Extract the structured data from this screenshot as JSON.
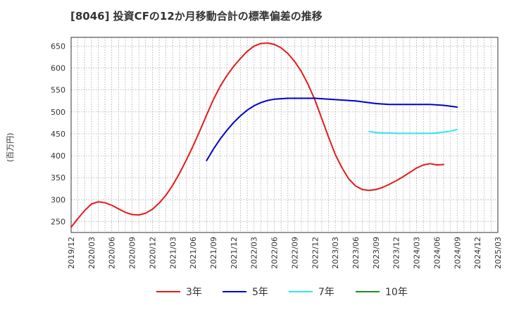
{
  "chart_data": {
    "type": "line",
    "title": "[8046]  投資CFの12か月移動合計の標準偏差の推移",
    "ylabel": "(百万円)",
    "xlabel": "",
    "ylim": [
      225,
      670
    ],
    "yticks": [
      250,
      300,
      350,
      400,
      450,
      500,
      550,
      600,
      650
    ],
    "xticks": [
      "2019/12",
      "2020/03",
      "2020/06",
      "2020/09",
      "2020/12",
      "2021/03",
      "2021/06",
      "2021/09",
      "2021/12",
      "2022/03",
      "2022/06",
      "2022/09",
      "2022/12",
      "2023/03",
      "2023/06",
      "2023/09",
      "2023/12",
      "2024/03",
      "2024/06",
      "2024/09",
      "2024/12",
      "2025/03"
    ],
    "grid": true,
    "legend_position": "bottom",
    "series": [
      {
        "name": "3年",
        "color": "#e41a1c",
        "x": [
          "2019/12",
          "2020/01",
          "2020/02",
          "2020/03",
          "2020/04",
          "2020/05",
          "2020/06",
          "2020/07",
          "2020/08",
          "2020/09",
          "2020/10",
          "2020/11",
          "2020/12",
          "2021/01",
          "2021/02",
          "2021/03",
          "2021/04",
          "2021/05",
          "2021/06",
          "2021/07",
          "2021/08",
          "2021/09",
          "2021/10",
          "2021/11",
          "2021/12",
          "2022/01",
          "2022/02",
          "2022/03",
          "2022/04",
          "2022/05",
          "2022/06",
          "2022/07",
          "2022/08",
          "2022/09",
          "2022/10",
          "2022/11",
          "2022/12",
          "2023/01",
          "2023/02",
          "2023/03",
          "2023/04",
          "2023/05",
          "2023/06",
          "2023/07",
          "2023/08",
          "2023/09",
          "2023/10",
          "2023/11",
          "2023/12",
          "2024/01",
          "2024/02",
          "2024/03",
          "2024/04",
          "2024/05",
          "2024/06",
          "2024/07",
          "2024/08",
          "2024/09"
        ],
        "values": [
          237,
          257,
          275,
          290,
          295,
          293,
          287,
          279,
          271,
          266,
          265,
          269,
          278,
          292,
          310,
          333,
          360,
          390,
          422,
          457,
          493,
          528,
          558,
          583,
          604,
          622,
          638,
          650,
          656,
          657,
          654,
          646,
          633,
          615,
          592,
          562,
          527,
          485,
          443,
          403,
          372,
          347,
          331,
          323,
          321,
          323,
          328,
          335,
          343,
          352,
          362,
          372,
          379,
          382,
          379,
          380,
          null,
          null
        ],
        "_note": null
      },
      {
        "name": "5年",
        "color": "#0000cc",
        "x": [
          "2021/08",
          "2021/09",
          "2021/10",
          "2021/11",
          "2021/12",
          "2022/01",
          "2022/02",
          "2022/03",
          "2022/04",
          "2022/05",
          "2022/06",
          "2022/07",
          "2022/08",
          "2022/09",
          "2022/10",
          "2022/11",
          "2022/12",
          "2023/01",
          "2023/02",
          "2023/03",
          "2023/04",
          "2023/05",
          "2023/06",
          "2023/07",
          "2023/08",
          "2023/09",
          "2023/10",
          "2023/11",
          "2023/12",
          "2024/01",
          "2024/02",
          "2024/03",
          "2024/04",
          "2024/05",
          "2024/06",
          "2024/07",
          "2024/08",
          "2024/09"
        ],
        "values": [
          389,
          415,
          438,
          458,
          476,
          491,
          504,
          514,
          521,
          526,
          529,
          530,
          531,
          531,
          531,
          531,
          531,
          530,
          529,
          528,
          527,
          526,
          525,
          523,
          521,
          519,
          518,
          517,
          517,
          517,
          517,
          517,
          517,
          517,
          516,
          515,
          513,
          511
        ]
      },
      {
        "name": "7年",
        "color": "#33e6f0",
        "x": [
          "2023/08",
          "2023/09",
          "2023/10",
          "2023/11",
          "2023/12",
          "2024/01",
          "2024/02",
          "2024/03",
          "2024/04",
          "2024/05",
          "2024/06",
          "2024/07",
          "2024/08",
          "2024/09"
        ],
        "values": [
          455,
          453,
          452,
          452,
          451,
          451,
          451,
          451,
          451,
          451,
          452,
          454,
          456,
          460
        ]
      },
      {
        "name": "10年",
        "color": "#228b22",
        "x": [],
        "values": []
      }
    ]
  }
}
